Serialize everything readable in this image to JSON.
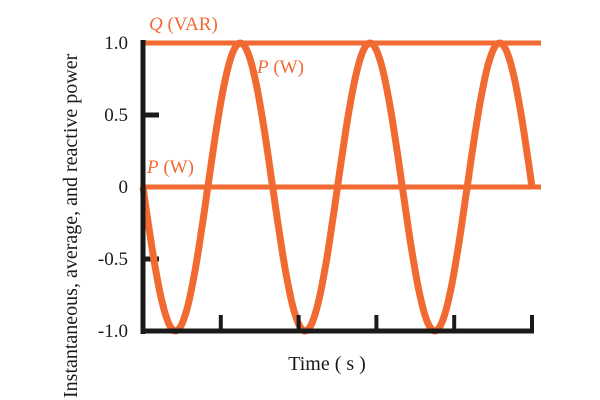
{
  "chart_data": {
    "type": "line",
    "title": "",
    "xlabel": "Time ( s )",
    "ylabel": "Instantaneous, average, and reactive power",
    "ylim": [
      -1.0,
      1.0
    ],
    "yticks": [
      "1.0",
      "0.5",
      "0",
      "-0.5",
      "-1.0"
    ],
    "ytick_values": [
      1.0,
      0.5,
      0,
      -0.5,
      -1.0
    ],
    "xlim": [
      0,
      5
    ],
    "xtick_count": 6,
    "grid": false,
    "color": "#f06a32",
    "series": [
      {
        "name": "P (W)",
        "kind": "instantaneous",
        "x": [
          0,
          0.4167,
          0.8333,
          1.25,
          1.6667,
          2.0833,
          2.5,
          2.9167,
          3.3333,
          3.75,
          4.1667,
          4.5833,
          5.0
        ],
        "y": [
          0,
          -1,
          0,
          1,
          0,
          -1,
          0,
          1,
          0,
          -1,
          0,
          1,
          0
        ]
      },
      {
        "name": "P (W)",
        "kind": "average",
        "y_const": 0
      },
      {
        "name": "Q (VAR)",
        "kind": "reactive",
        "y_const": 1.0
      }
    ],
    "labels": {
      "q": "Q",
      "q_unit": " (VAR)",
      "p": "P",
      "p_unit": " (W)"
    }
  }
}
